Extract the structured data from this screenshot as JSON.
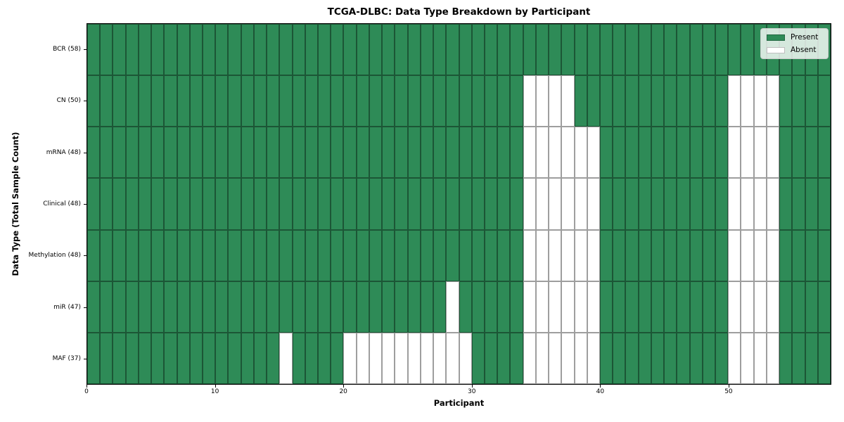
{
  "chart_data": {
    "type": "heatmap",
    "title": "TCGA-DLBC: Data Type Breakdown by Participant",
    "xlabel": "Participant",
    "ylabel": "Data Type (Total Sample Count)",
    "x_range": [
      0,
      58
    ],
    "x_ticks": [
      0,
      10,
      20,
      30,
      40,
      50
    ],
    "n_participants": 58,
    "cell_states": [
      "Present",
      "Absent"
    ],
    "colors": {
      "present": "#2e8b57",
      "absent": "#ffffff",
      "cell_edge": "rgba(0,0,0,0.38)"
    },
    "legend": {
      "position": "upper-right",
      "entries": [
        {
          "label": "Present",
          "color": "#2e8b57"
        },
        {
          "label": "Absent",
          "color": "#ffffff"
        }
      ]
    },
    "rows": [
      {
        "label": "BCR (58)",
        "data_type": "BCR",
        "total_samples": 58,
        "absent_participants": []
      },
      {
        "label": "CN (50)",
        "data_type": "CN",
        "total_samples": 50,
        "absent_participants": [
          34,
          35,
          36,
          37,
          50,
          51,
          52,
          53
        ]
      },
      {
        "label": "mRNA (48)",
        "data_type": "mRNA",
        "total_samples": 48,
        "absent_participants": [
          34,
          35,
          36,
          37,
          38,
          39,
          50,
          51,
          52,
          53
        ]
      },
      {
        "label": "Clinical (48)",
        "data_type": "Clinical",
        "total_samples": 48,
        "absent_participants": [
          34,
          35,
          36,
          37,
          38,
          39,
          50,
          51,
          52,
          53
        ]
      },
      {
        "label": "Methylation (48)",
        "data_type": "Methylation",
        "total_samples": 48,
        "absent_participants": [
          34,
          35,
          36,
          37,
          38,
          39,
          50,
          51,
          52,
          53
        ]
      },
      {
        "label": "miR (47)",
        "data_type": "miR",
        "total_samples": 47,
        "absent_participants": [
          28,
          34,
          35,
          36,
          37,
          38,
          39,
          50,
          51,
          52,
          53
        ]
      },
      {
        "label": "MAF (37)",
        "data_type": "MAF",
        "total_samples": 37,
        "absent_participants": [
          15,
          20,
          21,
          22,
          23,
          24,
          25,
          26,
          27,
          28,
          29,
          34,
          35,
          36,
          37,
          38,
          39,
          50,
          51,
          52,
          53
        ]
      }
    ]
  }
}
